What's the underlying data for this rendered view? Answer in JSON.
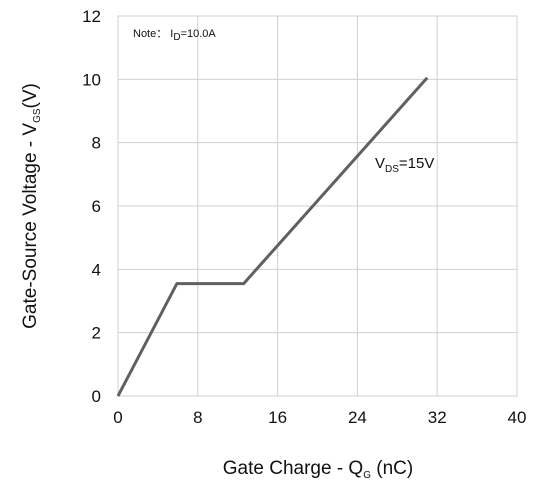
{
  "chart_data": {
    "type": "line",
    "xlabel": {
      "main": "Gate Charge - Q",
      "sub": "G",
      "tail": " (nC)"
    },
    "ylabel": {
      "main": "Gate-Source Voltage - V",
      "sub": "GS",
      "tail": "(V)"
    },
    "xlim": [
      0,
      40
    ],
    "ylim": [
      0,
      12
    ],
    "xticks": [
      0,
      8,
      16,
      24,
      32,
      40
    ],
    "yticks": [
      0,
      2,
      4,
      6,
      8,
      10,
      12
    ],
    "grid": true,
    "note": {
      "prefix": "Note： I",
      "sub": "D",
      "suffix": "=10.0A"
    },
    "series": [
      {
        "label": {
          "main": "V",
          "sub": "DS",
          "tail": "=15V"
        },
        "color": "#606060",
        "x": [
          0,
          5.9,
          12.6,
          31
        ],
        "y": [
          0,
          3.55,
          3.55,
          10.05
        ]
      }
    ]
  }
}
